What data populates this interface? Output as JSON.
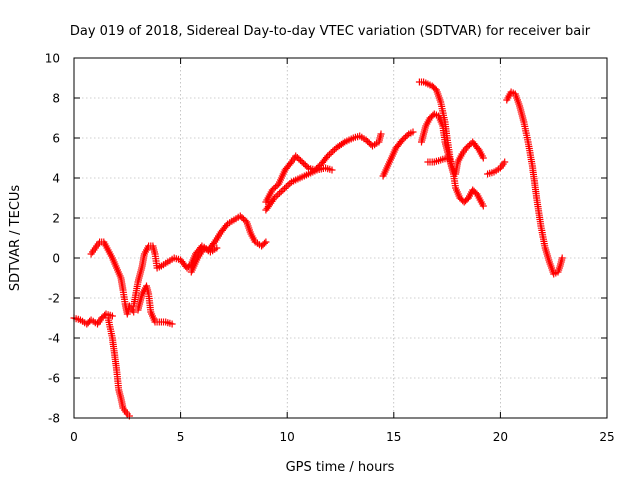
{
  "chart_data": {
    "type": "scatter",
    "title": "Day 019 of 2018, Sidereal Day-to-day VTEC variation (SDTVAR) for receiver bair",
    "xlabel": "GPS time / hours",
    "ylabel": "SDTVAR / TECUs",
    "xlim": [
      0,
      25
    ],
    "ylim": [
      -8,
      10
    ],
    "xticks": [
      0,
      5,
      10,
      15,
      20,
      25
    ],
    "yticks": [
      -8,
      -6,
      -4,
      -2,
      0,
      2,
      4,
      6,
      8,
      10
    ],
    "grid": true,
    "marker": "plus",
    "color": "#ff0000",
    "series": [
      {
        "values": [
          [
            0,
            -3
          ],
          [
            0.3,
            -3.1
          ],
          [
            0.6,
            -3.3
          ],
          [
            0.8,
            -3.1
          ],
          [
            1.1,
            -3.3
          ],
          [
            1.3,
            -3
          ],
          [
            1.5,
            -2.8
          ],
          [
            1.8,
            -2.9
          ]
        ]
      },
      {
        "values": [
          [
            0.8,
            0.2
          ],
          [
            1,
            0.5
          ],
          [
            1.2,
            0.8
          ],
          [
            1.4,
            0.8
          ],
          [
            1.6,
            0.4
          ],
          [
            1.8,
            0
          ],
          [
            2,
            -0.5
          ],
          [
            2.2,
            -1
          ],
          [
            2.3,
            -1.6
          ],
          [
            2.4,
            -2.3
          ],
          [
            2.5,
            -2.8
          ],
          [
            2.6,
            -2.4
          ],
          [
            2.8,
            -2.7
          ]
        ]
      },
      {
        "values": [
          [
            1.6,
            -3
          ],
          [
            1.8,
            -4
          ],
          [
            2,
            -5.6
          ],
          [
            2.1,
            -6.6
          ],
          [
            2.2,
            -7
          ],
          [
            2.3,
            -7.5
          ],
          [
            2.5,
            -7.8
          ],
          [
            2.6,
            -7.9
          ]
        ]
      },
      {
        "values": [
          [
            2.8,
            -2.4
          ],
          [
            3,
            -1.2
          ],
          [
            3.2,
            -0.4
          ],
          [
            3.3,
            0.2
          ],
          [
            3.5,
            0.6
          ],
          [
            3.7,
            0.6
          ],
          [
            3.8,
            0.2
          ],
          [
            3.9,
            -0.5
          ],
          [
            4.1,
            -0.4
          ],
          [
            4.4,
            -0.2
          ],
          [
            4.7,
            0
          ],
          [
            5,
            -0.1
          ],
          [
            5.3,
            -0.5
          ],
          [
            5.5,
            -0.3
          ],
          [
            5.7,
            0.2
          ],
          [
            6,
            0.6
          ],
          [
            6.3,
            0.4
          ],
          [
            6.6,
            0.8
          ],
          [
            6.9,
            1.3
          ],
          [
            7.2,
            1.7
          ],
          [
            7.5,
            1.9
          ],
          [
            7.8,
            2.1
          ],
          [
            8.1,
            1.8
          ],
          [
            8.3,
            1.2
          ],
          [
            8.5,
            0.8
          ],
          [
            8.8,
            0.6
          ],
          [
            9,
            0.8
          ]
        ]
      },
      {
        "values": [
          [
            3,
            -2.6
          ],
          [
            3.2,
            -1.8
          ],
          [
            3.4,
            -1.4
          ],
          [
            3.5,
            -1.8
          ],
          [
            3.6,
            -2.7
          ],
          [
            3.8,
            -3.2
          ],
          [
            4,
            -3.2
          ],
          [
            4.3,
            -3.2
          ],
          [
            4.6,
            -3.3
          ]
        ]
      },
      {
        "values": [
          [
            5.5,
            -0.7
          ],
          [
            5.8,
            0
          ],
          [
            6.1,
            0.5
          ],
          [
            6.4,
            0.3
          ],
          [
            6.7,
            0.5
          ]
        ]
      },
      {
        "values": [
          [
            9,
            2.8
          ],
          [
            9.3,
            3.4
          ],
          [
            9.6,
            3.7
          ],
          [
            9.9,
            4.4
          ],
          [
            10.2,
            4.8
          ],
          [
            10.4,
            5.1
          ],
          [
            10.7,
            4.8
          ],
          [
            11,
            4.5
          ],
          [
            11.3,
            4.4
          ],
          [
            11.6,
            4.7
          ],
          [
            11.9,
            5.1
          ],
          [
            12.3,
            5.5
          ],
          [
            12.7,
            5.8
          ],
          [
            13.1,
            6
          ],
          [
            13.4,
            6.1
          ],
          [
            13.7,
            5.9
          ],
          [
            14,
            5.6
          ],
          [
            14.3,
            5.8
          ],
          [
            14.4,
            6.2
          ]
        ]
      },
      {
        "values": [
          [
            9,
            2.4
          ],
          [
            9.4,
            3
          ],
          [
            9.8,
            3.4
          ],
          [
            10.2,
            3.8
          ],
          [
            10.6,
            4
          ],
          [
            11,
            4.2
          ],
          [
            11.4,
            4.4
          ],
          [
            11.8,
            4.5
          ],
          [
            12.1,
            4.4
          ]
        ]
      },
      {
        "values": [
          [
            14.5,
            4.1
          ],
          [
            14.8,
            4.8
          ],
          [
            15.1,
            5.5
          ],
          [
            15.4,
            5.9
          ],
          [
            15.7,
            6.2
          ],
          [
            15.9,
            6.3
          ]
        ]
      },
      {
        "values": [
          [
            16.2,
            8.8
          ],
          [
            16.4,
            8.8
          ],
          [
            16.6,
            8.7
          ],
          [
            16.8,
            8.6
          ],
          [
            17,
            8.4
          ],
          [
            17.2,
            7.8
          ],
          [
            17.4,
            6.8
          ],
          [
            17.5,
            6
          ],
          [
            17.6,
            5.3
          ],
          [
            17.7,
            4.6
          ],
          [
            17.9,
            4.2
          ],
          [
            18,
            4.8
          ],
          [
            18.2,
            5.2
          ],
          [
            18.4,
            5.5
          ],
          [
            18.7,
            5.8
          ],
          [
            19,
            5.4
          ],
          [
            19.2,
            5
          ]
        ]
      },
      {
        "values": [
          [
            16.3,
            5.8
          ],
          [
            16.5,
            6.6
          ],
          [
            16.7,
            7
          ],
          [
            16.9,
            7.2
          ],
          [
            17.1,
            7.1
          ],
          [
            17.3,
            6.6
          ],
          [
            17.4,
            5.8
          ],
          [
            17.6,
            5
          ],
          [
            17.8,
            4.2
          ],
          [
            17.9,
            3.5
          ],
          [
            18.1,
            3
          ],
          [
            18.3,
            2.8
          ],
          [
            18.5,
            3
          ],
          [
            18.7,
            3.4
          ],
          [
            18.9,
            3.2
          ],
          [
            19.1,
            2.8
          ],
          [
            19.2,
            2.6
          ]
        ]
      },
      {
        "values": [
          [
            16.6,
            4.8
          ],
          [
            16.9,
            4.8
          ],
          [
            17.2,
            4.9
          ],
          [
            17.5,
            5
          ]
        ]
      },
      {
        "values": [
          [
            19.4,
            4.2
          ],
          [
            19.7,
            4.3
          ],
          [
            20,
            4.5
          ],
          [
            20.2,
            4.8
          ]
        ]
      },
      {
        "values": [
          [
            20.3,
            7.9
          ],
          [
            20.5,
            8.3
          ],
          [
            20.7,
            8.2
          ],
          [
            20.9,
            7.6
          ],
          [
            21.1,
            6.8
          ],
          [
            21.3,
            5.8
          ],
          [
            21.5,
            4.6
          ],
          [
            21.7,
            3
          ],
          [
            21.9,
            1.6
          ],
          [
            22.1,
            0.5
          ],
          [
            22.3,
            -0.2
          ],
          [
            22.5,
            -0.8
          ],
          [
            22.7,
            -0.7
          ],
          [
            22.8,
            -0.4
          ],
          [
            22.9,
            0
          ]
        ]
      }
    ]
  }
}
